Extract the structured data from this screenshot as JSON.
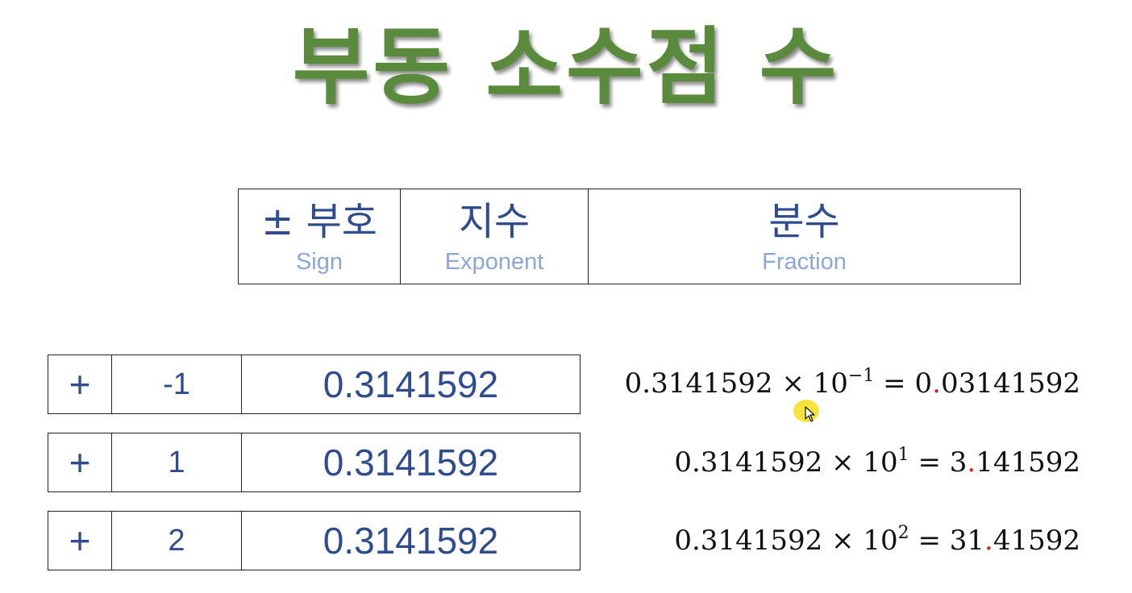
{
  "title": "부동 소수점 수",
  "header": [
    {
      "ko": "± 부호",
      "en": "Sign"
    },
    {
      "ko": "지수",
      "en": "Exponent"
    },
    {
      "ko": "분수",
      "en": "Fraction"
    }
  ],
  "rows": [
    {
      "sign": "+",
      "exponent": "-1",
      "fraction": "0.3141592"
    },
    {
      "sign": "+",
      "exponent": "1",
      "fraction": "0.3141592"
    },
    {
      "sign": "+",
      "exponent": "2",
      "fraction": "0.3141592"
    }
  ],
  "equations": [
    {
      "mantissa": "0.3141592",
      "times": "×",
      "base": "10",
      "power": "−1",
      "equals": "=",
      "int_part": "0",
      "point": ".",
      "frac_part": "03141592"
    },
    {
      "mantissa": "0.3141592",
      "times": "×",
      "base": "10",
      "power": "1",
      "equals": "=",
      "int_part": "3",
      "point": ".",
      "frac_part": "141592"
    },
    {
      "mantissa": "0.3141592",
      "times": "×",
      "base": "10",
      "power": "2",
      "equals": "=",
      "int_part": "31",
      "point": ".",
      "frac_part": "41592"
    }
  ],
  "colors": {
    "title": "#5a8a3c",
    "header_text": "#2f4d8c",
    "header_sub": "#8ea6d4",
    "point_highlight": "#d0261e",
    "cursor_highlight": "#f5e128"
  },
  "cursor": {
    "icon": "mouse-pointer-icon"
  }
}
